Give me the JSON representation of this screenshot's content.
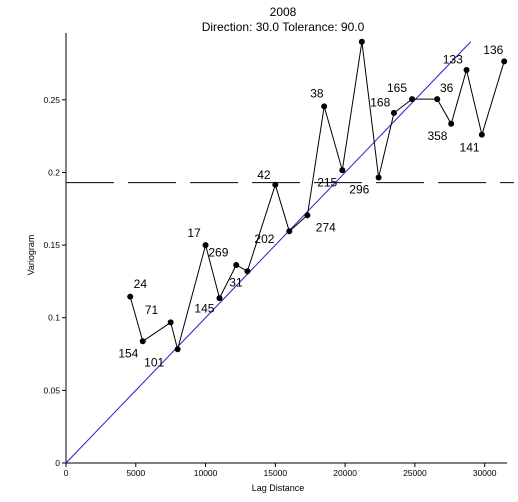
{
  "chart_data": {
    "type": "line",
    "title": "2008",
    "subtitle": "Direction: 30.0   Tolerance: 90.0",
    "xlabel": "Lag Distance",
    "ylabel": "Variogram",
    "xlim": [
      0,
      31600
    ],
    "ylim": [
      0,
      0.296
    ],
    "x_ticks": [
      {
        "value": 0,
        "label": "0"
      },
      {
        "value": 5000,
        "label": "5000"
      },
      {
        "value": 10000,
        "label": "10000"
      },
      {
        "value": 15000,
        "label": "15000"
      },
      {
        "value": 20000,
        "label": "20000"
      },
      {
        "value": 25000,
        "label": "25000"
      },
      {
        "value": 30000,
        "label": "30000"
      }
    ],
    "y_ticks": [
      {
        "value": 0,
        "label": "0"
      },
      {
        "value": 0.05,
        "label": "0.05"
      },
      {
        "value": 0.1,
        "label": "0.1"
      },
      {
        "value": 0.15,
        "label": "0.15"
      },
      {
        "value": 0.2,
        "label": "0.2"
      },
      {
        "value": 0.25,
        "label": "0.25"
      }
    ],
    "sill": 0.193,
    "model_line": {
      "from": [
        0,
        0
      ],
      "to": [
        29000,
        0.29
      ],
      "color": "#1f1fcc"
    },
    "series_color": "#000000",
    "points": [
      {
        "x": 4600,
        "y": 0.1145,
        "n": "24",
        "lx": 4850,
        "ly": 0.1205
      },
      {
        "x": 5500,
        "y": 0.0838,
        "n": "154",
        "lx": 3750,
        "ly": 0.0725
      },
      {
        "x": 7500,
        "y": 0.0968,
        "n": "71",
        "lx": 5650,
        "ly": 0.1025
      },
      {
        "x": 8000,
        "y": 0.0783,
        "n": "101",
        "lx": 5600,
        "ly": 0.0665
      },
      {
        "x": 10000,
        "y": 0.15,
        "n": "17",
        "lx": 8700,
        "ly": 0.1555
      },
      {
        "x": 11000,
        "y": 0.1135,
        "n": "145",
        "lx": 9200,
        "ly": 0.1035
      },
      {
        "x": 12200,
        "y": 0.1363,
        "n": "269",
        "lx": 10200,
        "ly": 0.142
      },
      {
        "x": 13000,
        "y": 0.132,
        "n": "31",
        "lx": 11700,
        "ly": 0.1215
      },
      {
        "x": 15000,
        "y": 0.1915,
        "n": "42",
        "lx": 13700,
        "ly": 0.1955
      },
      {
        "x": 16000,
        "y": 0.1595,
        "n": "202",
        "lx": 13500,
        "ly": 0.1515
      },
      {
        "x": 17300,
        "y": 0.1705,
        "n": "274",
        "lx": 17900,
        "ly": 0.1595
      },
      {
        "x": 18500,
        "y": 0.2455,
        "n": "38",
        "lx": 17500,
        "ly": 0.2515
      },
      {
        "x": 19800,
        "y": 0.2015,
        "n": "215",
        "lx": 18000,
        "ly": 0.1905
      },
      {
        "x": 21200,
        "y": 0.29,
        "n": "",
        "lx": 0,
        "ly": 0
      },
      {
        "x": 22400,
        "y": 0.1965,
        "n": "296",
        "lx": 20300,
        "ly": 0.1855
      },
      {
        "x": 23500,
        "y": 0.241,
        "n": "168",
        "lx": 21800,
        "ly": 0.2455
      },
      {
        "x": 24800,
        "y": 0.2505,
        "n": "165",
        "lx": 23000,
        "ly": 0.2555
      },
      {
        "x": 26600,
        "y": 0.2505,
        "n": "36",
        "lx": 26800,
        "ly": 0.2555
      },
      {
        "x": 27600,
        "y": 0.2335,
        "n": "358",
        "lx": 25900,
        "ly": 0.2225
      },
      {
        "x": 28700,
        "y": 0.2705,
        "n": "133",
        "lx": 27000,
        "ly": 0.275
      },
      {
        "x": 29800,
        "y": 0.226,
        "n": "141",
        "lx": 28200,
        "ly": 0.2145
      },
      {
        "x": 31400,
        "y": 0.2765,
        "n": "136",
        "lx": 29900,
        "ly": 0.2815
      }
    ]
  }
}
